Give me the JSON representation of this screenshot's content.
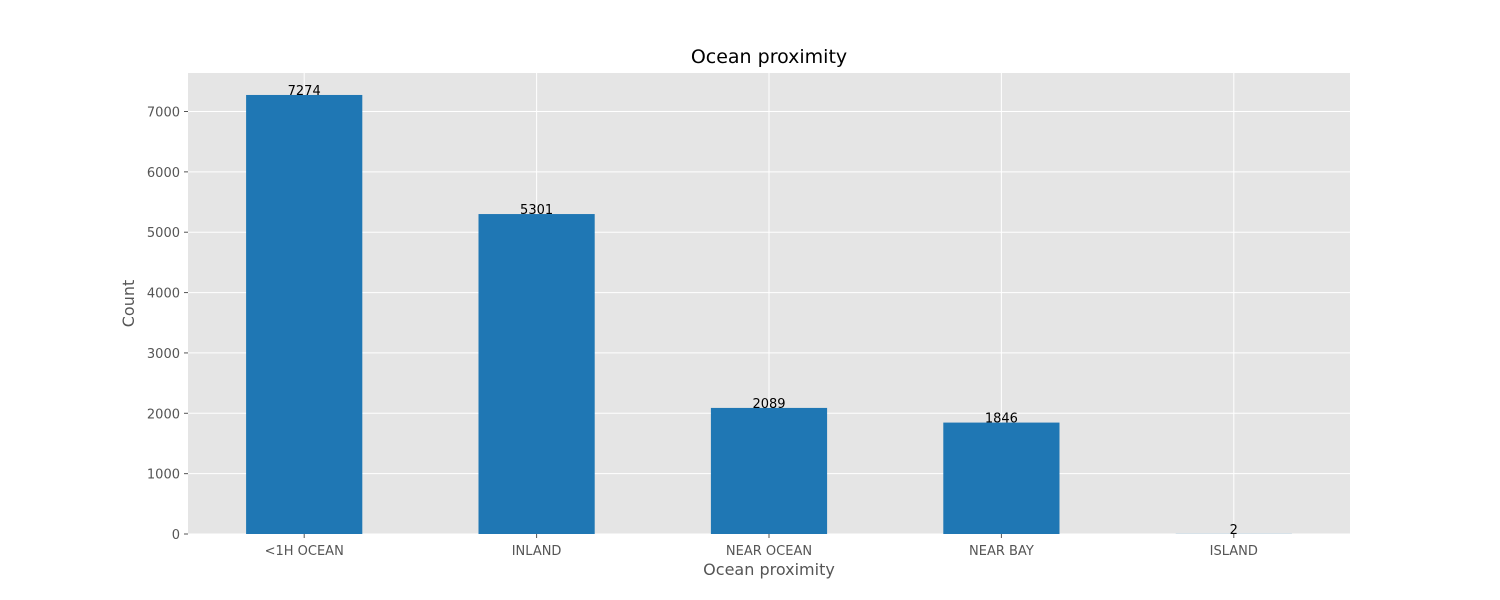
{
  "chart_data": {
    "type": "bar",
    "title": "Ocean proximity",
    "xlabel": "Ocean proximity",
    "ylabel": "Count",
    "categories": [
      "<1H OCEAN",
      "INLAND",
      "NEAR OCEAN",
      "NEAR BAY",
      "ISLAND"
    ],
    "values": [
      7274,
      5301,
      2089,
      1846,
      2
    ],
    "data_labels": [
      "7274",
      "5301",
      "2089",
      "1846",
      "2"
    ],
    "ylim": [
      0,
      7638
    ],
    "yticks": [
      0,
      1000,
      2000,
      3000,
      4000,
      5000,
      6000,
      7000
    ],
    "grid": true,
    "legend": "none",
    "colors": {
      "bar": "#1f77b4",
      "plot_background": "#e5e5e5",
      "grid": "#ffffff",
      "text": "#555555"
    }
  }
}
